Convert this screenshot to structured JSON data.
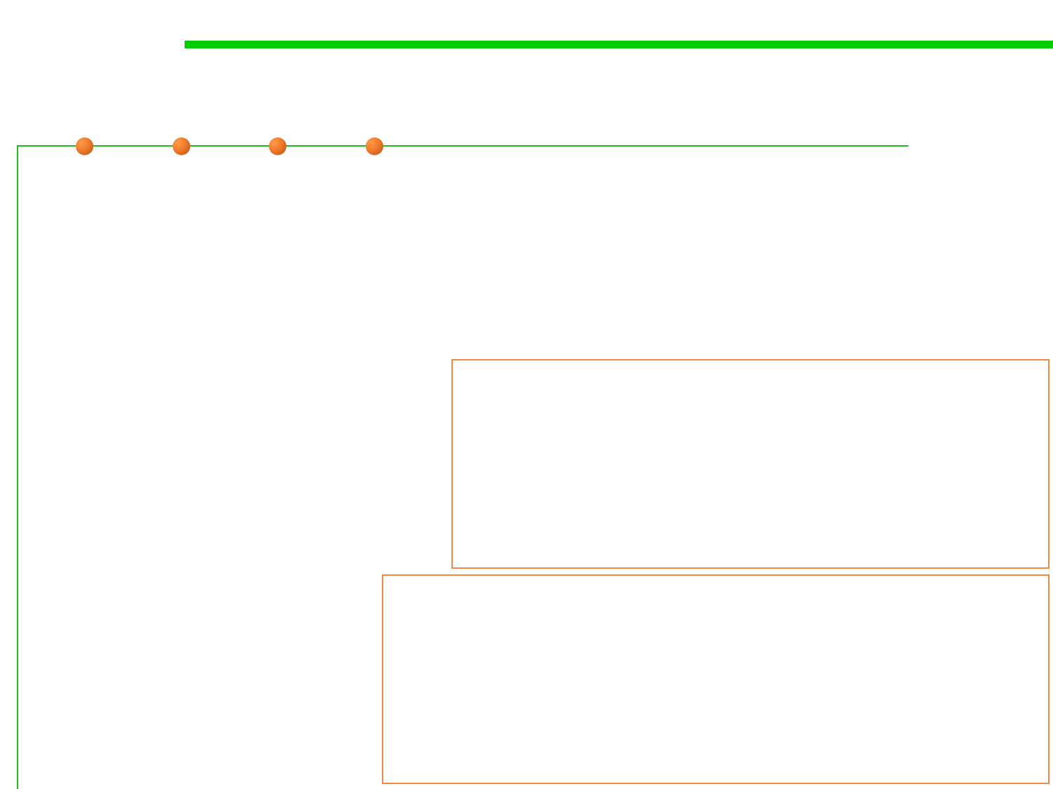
{
  "colors": {
    "accent_bar": "#00cc00",
    "frame_line": "#22bb22",
    "node_dot": "#ef7a2a",
    "panel_border": "#f08a4b",
    "background": "#ffffff"
  },
  "nodes": [
    {
      "icon": "orange-circle-icon"
    },
    {
      "icon": "orange-circle-icon"
    },
    {
      "icon": "orange-circle-icon"
    },
    {
      "icon": "orange-circle-icon"
    }
  ],
  "panels": [
    {
      "text": ""
    },
    {
      "text": ""
    }
  ]
}
